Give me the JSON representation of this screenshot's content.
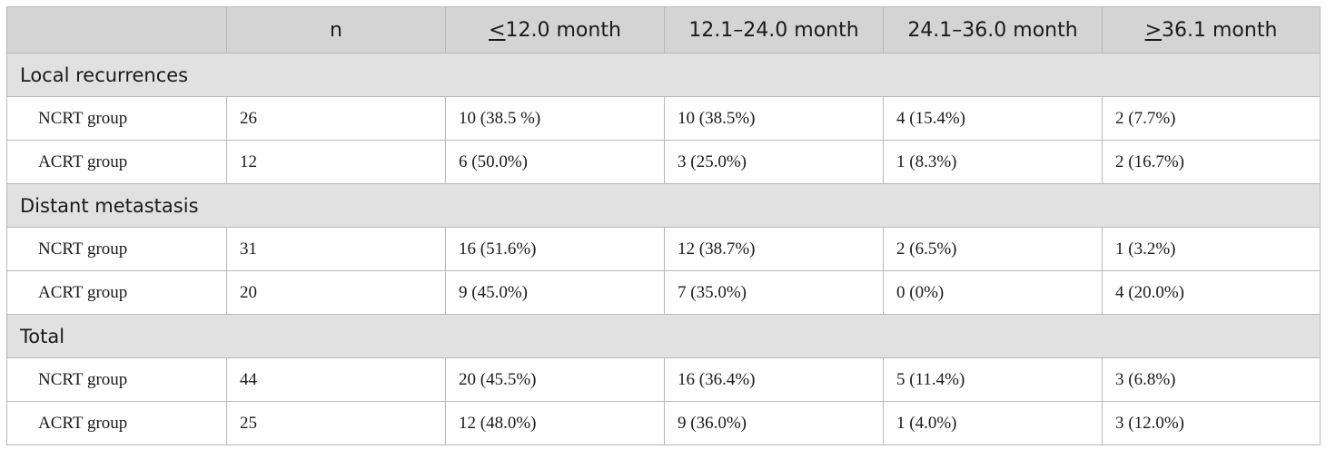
{
  "table": {
    "headers": [
      {
        "text": ""
      },
      {
        "text": "n"
      },
      {
        "prefix": "<",
        "text": "12.0 month"
      },
      {
        "text": "12.1–24.0 month"
      },
      {
        "text": "24.1–36.0 month"
      },
      {
        "prefix": ">",
        "text": "36.1 month"
      }
    ],
    "sections": [
      {
        "title": "Local recurrences",
        "rows": [
          {
            "label": "NCRT group",
            "n": "26",
            "c1": "10 (38.5 %)",
            "c2": "10 (38.5%)",
            "c3": "4 (15.4%)",
            "c4": "2 (7.7%)"
          },
          {
            "label": "ACRT group",
            "n": "12",
            "c1": "6 (50.0%)",
            "c2": "3 (25.0%)",
            "c3": "1 (8.3%)",
            "c4": "2 (16.7%)"
          }
        ]
      },
      {
        "title": "Distant metastasis",
        "rows": [
          {
            "label": "NCRT group",
            "n": "31",
            "c1": "16 (51.6%)",
            "c2": "12 (38.7%)",
            "c3": "2 (6.5%)",
            "c4": "1 (3.2%)"
          },
          {
            "label": "ACRT group",
            "n": "20",
            "c1": "9 (45.0%)",
            "c2": "7 (35.0%)",
            "c3": "0 (0%)",
            "c4": "4 (20.0%)"
          }
        ]
      },
      {
        "title": "Total",
        "rows": [
          {
            "label": "NCRT group",
            "n": "44",
            "c1": "20 (45.5%)",
            "c2": "16 (36.4%)",
            "c3": "5 (11.4%)",
            "c4": "3 (6.8%)"
          },
          {
            "label": "ACRT group",
            "n": "25",
            "c1": "12 (48.0%)",
            "c2": "9 (36.0%)",
            "c3": "1 (4.0%)",
            "c4": "3 (12.0%)"
          }
        ]
      }
    ]
  }
}
